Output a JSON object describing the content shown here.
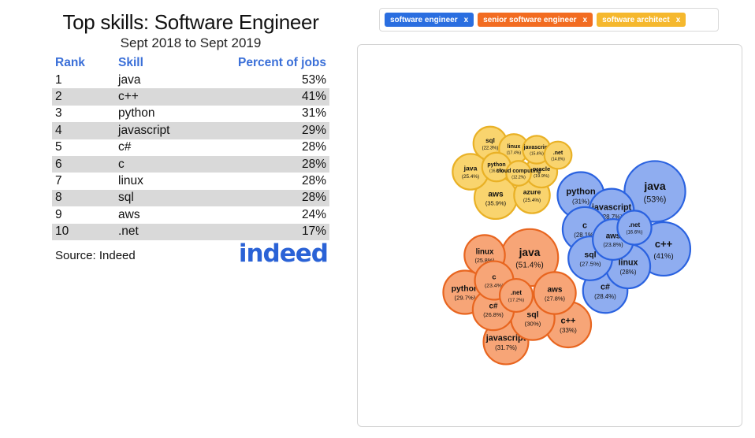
{
  "left": {
    "title": "Top skills: Software Engineer",
    "subtitle": "Sept 2018 to Sept 2019",
    "headers": {
      "rank": "Rank",
      "skill": "Skill",
      "pct": "Percent of jobs"
    },
    "rows": [
      {
        "rank": "1",
        "skill": "java",
        "pct": "53%"
      },
      {
        "rank": "2",
        "skill": "c++",
        "pct": "41%"
      },
      {
        "rank": "3",
        "skill": "python",
        "pct": "31%"
      },
      {
        "rank": "4",
        "skill": "javascript",
        "pct": "29%"
      },
      {
        "rank": "5",
        "skill": "c#",
        "pct": "28%"
      },
      {
        "rank": "6",
        "skill": "c",
        "pct": "28%"
      },
      {
        "rank": "7",
        "skill": "linux",
        "pct": "28%"
      },
      {
        "rank": "8",
        "skill": "sql",
        "pct": "28%"
      },
      {
        "rank": "9",
        "skill": "aws",
        "pct": "24%"
      },
      {
        "rank": "10",
        "skill": ".net",
        "pct": "17%"
      }
    ],
    "source": "Source: Indeed",
    "logo_text": "indeed",
    "colors": {
      "header": "#3a6fd8",
      "stripe": "#d9d9d9",
      "logo": "#2a62d6"
    }
  },
  "filters": {
    "tags": [
      {
        "label": "software engineer",
        "close": "x",
        "color": "#2a6ee0"
      },
      {
        "label": "senior software engineer",
        "close": "x",
        "color": "#f26c21"
      },
      {
        "label": "software architect",
        "close": "x",
        "color": "#f5b82e"
      }
    ]
  },
  "chart_data": {
    "type": "bubble",
    "series": [
      {
        "name": "software engineer",
        "fill": "#8fadf0",
        "stroke": "#2a62e0",
        "values": [
          {
            "skill": "java",
            "pct": "(53%)",
            "value": 53
          },
          {
            "skill": "c++",
            "pct": "(41%)",
            "value": 41
          },
          {
            "skill": "python",
            "pct": "(31%)",
            "value": 31
          },
          {
            "skill": "javascript",
            "pct": "(28.7%)",
            "value": 28.7
          },
          {
            "skill": "c#",
            "pct": "(28.4%)",
            "value": 28.4
          },
          {
            "skill": "c",
            "pct": "(28.1%)",
            "value": 28.1
          },
          {
            "skill": "linux",
            "pct": "(28%)",
            "value": 28
          },
          {
            "skill": "sql",
            "pct": "(27.5%)",
            "value": 27.5
          },
          {
            "skill": "aws",
            "pct": "(23.8%)",
            "value": 23.8
          },
          {
            "skill": ".net",
            "pct": "(16.6%)",
            "value": 16.6
          }
        ]
      },
      {
        "name": "senior software engineer",
        "fill": "#f7a577",
        "stroke": "#e8651f",
        "values": [
          {
            "skill": "java",
            "pct": "(51.4%)",
            "value": 51.4
          },
          {
            "skill": "c++",
            "pct": "(33%)",
            "value": 33
          },
          {
            "skill": "javascript",
            "pct": "(31.7%)",
            "value": 31.7
          },
          {
            "skill": "sql",
            "pct": "(30%)",
            "value": 30
          },
          {
            "skill": "python",
            "pct": "(29.7%)",
            "value": 29.7
          },
          {
            "skill": "aws",
            "pct": "(27.8%)",
            "value": 27.8
          },
          {
            "skill": "c#",
            "pct": "(26.8%)",
            "value": 26.8
          },
          {
            "skill": "linux",
            "pct": "(25.8%)",
            "value": 25.8
          },
          {
            "skill": "c",
            "pct": "(23.4%)",
            "value": 23.4
          },
          {
            "skill": ".net",
            "pct": "(17.2%)",
            "value": 17.2
          }
        ]
      },
      {
        "name": "software architect",
        "fill": "#f9d46e",
        "stroke": "#e9b126",
        "values": [
          {
            "skill": "aws",
            "pct": "(35.9%)",
            "value": 35.9
          },
          {
            "skill": "java",
            "pct": "(25.4%)",
            "value": 25.4
          },
          {
            "skill": "azure",
            "pct": "(25.4%)",
            "value": 25.4
          },
          {
            "skill": "sql",
            "pct": "(22.3%)",
            "value": 22.3
          },
          {
            "skill": "oracle",
            "pct": "(19.9%)",
            "value": 19.9
          },
          {
            "skill": "linux",
            "pct": "(17.4%)",
            "value": 17.4
          },
          {
            "skill": "python",
            "pct": "(16.5%)",
            "value": 16.5
          },
          {
            "skill": "javascript",
            "pct": "(15.4%)",
            "value": 15.4
          },
          {
            "skill": ".net",
            "pct": "(14.8%)",
            "value": 14.8
          },
          {
            "skill": "cloud computing",
            "pct": "(12.2%)",
            "value": 12.2
          }
        ]
      }
    ]
  }
}
